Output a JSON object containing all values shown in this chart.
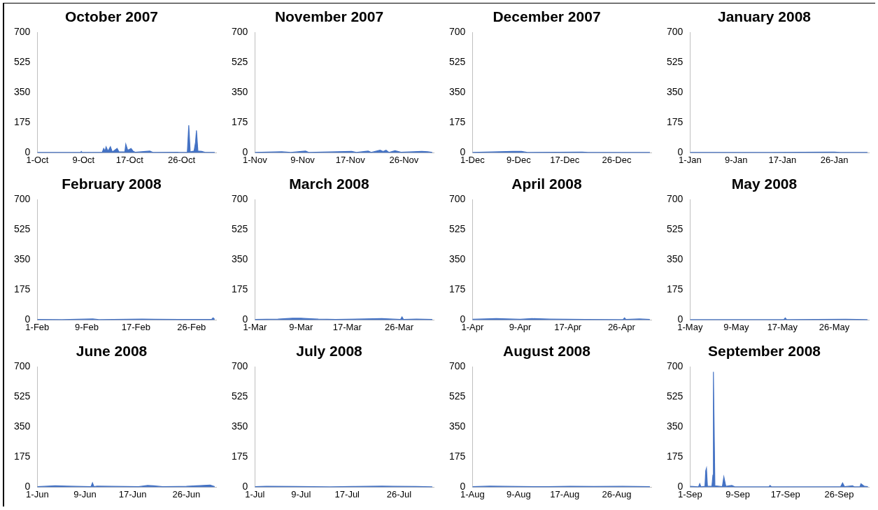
{
  "chart_data": [
    {
      "type": "area",
      "title": "October 2007",
      "color": "#4472c4",
      "xlim": [
        "2007-10-01",
        "2007-11-01"
      ],
      "xticks": [
        {
          "value": "2007-10-01",
          "label": "1-Oct"
        },
        {
          "value": "2007-10-09",
          "label": "9-Oct"
        },
        {
          "value": "2007-10-17",
          "label": "17-Oct"
        },
        {
          "value": "2007-10-26",
          "label": "26-Oct"
        }
      ],
      "ylim": [
        0,
        700
      ],
      "yticks": [
        0,
        175,
        350,
        525,
        700
      ],
      "x": [
        "2007-10-01",
        "2007-10-08T12:00",
        "2007-10-08T15:00",
        "2007-10-08T18:00",
        "2007-10-12T06:00",
        "2007-10-12T12:00",
        "2007-10-12T18:00",
        "2007-10-12T22:00",
        "2007-10-13T06:00",
        "2007-10-13T16:00",
        "2007-10-14T00:00",
        "2007-10-14T20:00",
        "2007-10-15T04:00",
        "2007-10-16T04:00",
        "2007-10-16T08:00",
        "2007-10-16T16:00",
        "2007-10-17T06:00",
        "2007-10-17T14:00",
        "2007-10-18T00:00",
        "2007-10-20T12:00",
        "2007-10-21T00:00",
        "2007-10-27T00:00",
        "2007-10-27T06:00",
        "2007-10-27T12:00",
        "2007-10-28T04:00",
        "2007-10-28T10:00",
        "2007-10-28T14:00",
        "2007-10-28T20:00",
        "2007-10-29T12:00",
        "2007-10-30T00:00",
        "2007-10-31T18:00"
      ],
      "values": [
        2,
        2,
        8,
        2,
        3,
        25,
        10,
        35,
        10,
        35,
        5,
        25,
        5,
        5,
        50,
        15,
        25,
        10,
        3,
        10,
        2,
        3,
        160,
        5,
        10,
        60,
        130,
        10,
        8,
        3,
        2
      ]
    },
    {
      "type": "area",
      "title": "November 2007",
      "color": "#4472c4",
      "xlim": [
        "2007-11-01",
        "2007-12-01"
      ],
      "xticks": [
        {
          "value": "2007-11-01",
          "label": "1-Nov"
        },
        {
          "value": "2007-11-09",
          "label": "9-Nov"
        },
        {
          "value": "2007-11-17",
          "label": "17-Nov"
        },
        {
          "value": "2007-11-26",
          "label": "26-Nov"
        }
      ],
      "ylim": [
        0,
        700
      ],
      "yticks": [
        0,
        175,
        350,
        525,
        700
      ],
      "x": [
        "2007-11-01",
        "2007-11-05T12:00",
        "2007-11-07",
        "2007-11-09T12:00",
        "2007-11-10",
        "2007-11-17T06:00",
        "2007-11-18",
        "2007-11-20",
        "2007-11-20T12:00",
        "2007-11-22",
        "2007-11-22T12:00",
        "2007-11-23",
        "2007-11-23T12:00",
        "2007-11-24T12:00",
        "2007-11-25T12:00",
        "2007-11-29",
        "2007-11-30",
        "2007-11-30T18:00"
      ],
      "values": [
        2,
        6,
        2,
        10,
        2,
        8,
        2,
        10,
        2,
        15,
        8,
        15,
        2,
        12,
        3,
        8,
        6,
        2
      ]
    },
    {
      "type": "area",
      "title": "December 2007",
      "color": "#4472c4",
      "xlim": [
        "2007-12-01",
        "2008-01-01"
      ],
      "xticks": [
        {
          "value": "2007-12-01",
          "label": "1-Dec"
        },
        {
          "value": "2007-12-09",
          "label": "9-Dec"
        },
        {
          "value": "2007-12-17",
          "label": "17-Dec"
        },
        {
          "value": "2007-12-26",
          "label": "26-Dec"
        }
      ],
      "ylim": [
        0,
        700
      ],
      "yticks": [
        0,
        175,
        350,
        525,
        700
      ],
      "x": [
        "2007-12-01",
        "2007-12-08",
        "2007-12-09T12:00",
        "2007-12-10T12:00",
        "2007-12-20",
        "2007-12-21",
        "2007-12-31T18:00"
      ],
      "values": [
        2,
        8,
        8,
        2,
        4,
        2,
        2
      ]
    },
    {
      "type": "area",
      "title": "January 2008",
      "color": "#4472c4",
      "xlim": [
        "2008-01-01",
        "2008-02-01"
      ],
      "xticks": [
        {
          "value": "2008-01-01",
          "label": "1-Jan"
        },
        {
          "value": "2008-01-09",
          "label": "9-Jan"
        },
        {
          "value": "2008-01-17",
          "label": "17-Jan"
        },
        {
          "value": "2008-01-26",
          "label": "26-Jan"
        }
      ],
      "ylim": [
        0,
        700
      ],
      "yticks": [
        0,
        175,
        350,
        525,
        700
      ],
      "x": [
        "2008-01-01",
        "2008-01-15",
        "2008-01-26",
        "2008-01-27",
        "2008-01-31T18:00"
      ],
      "values": [
        2,
        2,
        4,
        2,
        2
      ]
    },
    {
      "type": "area",
      "title": "February 2008",
      "color": "#4472c4",
      "xlim": [
        "2008-02-01",
        "2008-03-01"
      ],
      "xticks": [
        {
          "value": "2008-02-01",
          "label": "1-Feb"
        },
        {
          "value": "2008-02-09",
          "label": "9-Feb"
        },
        {
          "value": "2008-02-17",
          "label": "17-Feb"
        },
        {
          "value": "2008-02-26",
          "label": "26-Feb"
        }
      ],
      "ylim": [
        0,
        700
      ],
      "yticks": [
        0,
        175,
        350,
        525,
        700
      ],
      "x": [
        "2008-02-01",
        "2008-02-05",
        "2008-02-10",
        "2008-02-11",
        "2008-02-18",
        "2008-02-20",
        "2008-02-24",
        "2008-02-29T06:00",
        "2008-02-29T12:00",
        "2008-02-29T18:00"
      ],
      "values": [
        3,
        2,
        6,
        2,
        5,
        4,
        3,
        3,
        12,
        4
      ]
    },
    {
      "type": "area",
      "title": "March 2008",
      "color": "#4472c4",
      "xlim": [
        "2008-03-01",
        "2008-04-01"
      ],
      "xticks": [
        {
          "value": "2008-03-01",
          "label": "1-Mar"
        },
        {
          "value": "2008-03-09",
          "label": "9-Mar"
        },
        {
          "value": "2008-03-17",
          "label": "17-Mar"
        },
        {
          "value": "2008-03-26",
          "label": "26-Mar"
        }
      ],
      "ylim": [
        0,
        700
      ],
      "yticks": [
        0,
        175,
        350,
        525,
        700
      ],
      "x": [
        "2008-03-01",
        "2008-03-05",
        "2008-03-07T12:00",
        "2008-03-09",
        "2008-03-10",
        "2008-03-12",
        "2008-03-15",
        "2008-03-20",
        "2008-03-23",
        "2008-03-26T06:00",
        "2008-03-26T12:00",
        "2008-03-26T18:00",
        "2008-03-29",
        "2008-03-31T18:00"
      ],
      "values": [
        3,
        5,
        10,
        10,
        8,
        5,
        3,
        6,
        8,
        3,
        18,
        3,
        5,
        3
      ]
    },
    {
      "type": "area",
      "title": "April 2008",
      "color": "#4472c4",
      "xlim": [
        "2008-04-01",
        "2008-05-01"
      ],
      "xticks": [
        {
          "value": "2008-04-01",
          "label": "1-Apr"
        },
        {
          "value": "2008-04-09",
          "label": "9-Apr"
        },
        {
          "value": "2008-04-17",
          "label": "17-Apr"
        },
        {
          "value": "2008-04-26",
          "label": "26-Apr"
        }
      ],
      "ylim": [
        0,
        700
      ],
      "yticks": [
        0,
        175,
        350,
        525,
        700
      ],
      "x": [
        "2008-04-01",
        "2008-04-05",
        "2008-04-09",
        "2008-04-11",
        "2008-04-14",
        "2008-04-20",
        "2008-04-26T06:00",
        "2008-04-26T12:00",
        "2008-04-26T18:00",
        "2008-04-29",
        "2008-04-30T18:00"
      ],
      "values": [
        4,
        8,
        4,
        8,
        5,
        3,
        2,
        12,
        3,
        6,
        3
      ]
    },
    {
      "type": "area",
      "title": "May 2008",
      "color": "#4472c4",
      "xlim": [
        "2008-05-01",
        "2008-06-01"
      ],
      "xticks": [
        {
          "value": "2008-05-01",
          "label": "1-May"
        },
        {
          "value": "2008-05-09",
          "label": "9-May"
        },
        {
          "value": "2008-05-17",
          "label": "17-May"
        },
        {
          "value": "2008-05-26",
          "label": "26-May"
        }
      ],
      "ylim": [
        0,
        700
      ],
      "yticks": [
        0,
        175,
        350,
        525,
        700
      ],
      "x": [
        "2008-05-01",
        "2008-05-10",
        "2008-05-17T06:00",
        "2008-05-17T12:00",
        "2008-05-17T18:00",
        "2008-05-28",
        "2008-05-31T18:00"
      ],
      "values": [
        2,
        2,
        2,
        12,
        2,
        4,
        2
      ]
    },
    {
      "type": "area",
      "title": "June 2008",
      "color": "#4472c4",
      "xlim": [
        "2008-06-01",
        "2008-07-01"
      ],
      "xticks": [
        {
          "value": "2008-06-01",
          "label": "1-Jun"
        },
        {
          "value": "2008-06-09",
          "label": "9-Jun"
        },
        {
          "value": "2008-06-17",
          "label": "17-Jun"
        },
        {
          "value": "2008-06-26",
          "label": "26-Jun"
        }
      ],
      "ylim": [
        0,
        700
      ],
      "yticks": [
        0,
        175,
        350,
        525,
        700
      ],
      "x": [
        "2008-06-01",
        "2008-06-04",
        "2008-06-06",
        "2008-06-10",
        "2008-06-10T06:00",
        "2008-06-10T12:00",
        "2008-06-11",
        "2008-06-18",
        "2008-06-19T12:00",
        "2008-06-20T12:00",
        "2008-06-22",
        "2008-06-26",
        "2008-06-30",
        "2008-06-30T18:00"
      ],
      "values": [
        3,
        8,
        6,
        3,
        25,
        3,
        6,
        3,
        10,
        8,
        3,
        5,
        12,
        3
      ]
    },
    {
      "type": "area",
      "title": "July 2008",
      "color": "#4472c4",
      "xlim": [
        "2008-07-01",
        "2008-08-01"
      ],
      "xticks": [
        {
          "value": "2008-07-01",
          "label": "1-Jul"
        },
        {
          "value": "2008-07-09",
          "label": "9-Jul"
        },
        {
          "value": "2008-07-17",
          "label": "17-Jul"
        },
        {
          "value": "2008-07-26",
          "label": "26-Jul"
        }
      ],
      "ylim": [
        0,
        700
      ],
      "yticks": [
        0,
        175,
        350,
        525,
        700
      ],
      "x": [
        "2008-07-01",
        "2008-07-03",
        "2008-07-08",
        "2008-07-14",
        "2008-07-18",
        "2008-07-23",
        "2008-07-25",
        "2008-07-29",
        "2008-07-31T18:00"
      ],
      "values": [
        3,
        5,
        4,
        2,
        4,
        6,
        5,
        4,
        2
      ]
    },
    {
      "type": "area",
      "title": "August 2008",
      "color": "#4472c4",
      "xlim": [
        "2008-08-01",
        "2008-09-01"
      ],
      "xticks": [
        {
          "value": "2008-08-01",
          "label": "1-Aug"
        },
        {
          "value": "2008-08-09",
          "label": "9-Aug"
        },
        {
          "value": "2008-08-17",
          "label": "17-Aug"
        },
        {
          "value": "2008-08-26",
          "label": "26-Aug"
        }
      ],
      "ylim": [
        0,
        700
      ],
      "yticks": [
        0,
        175,
        350,
        525,
        700
      ],
      "x": [
        "2008-08-01",
        "2008-08-04",
        "2008-08-09",
        "2008-08-14",
        "2008-08-18",
        "2008-08-22",
        "2008-08-27",
        "2008-08-31T18:00"
      ],
      "values": [
        3,
        6,
        4,
        3,
        5,
        4,
        5,
        3
      ]
    },
    {
      "type": "area",
      "title": "September 2008",
      "color": "#4472c4",
      "xlim": [
        "2008-09-01",
        "2008-10-01"
      ],
      "xticks": [
        {
          "value": "2008-09-01",
          "label": "1-Sep"
        },
        {
          "value": "2008-09-09",
          "label": "9-Sep"
        },
        {
          "value": "2008-09-17",
          "label": "17-Sep"
        },
        {
          "value": "2008-09-26",
          "label": "26-Sep"
        }
      ],
      "ylim": [
        0,
        700
      ],
      "yticks": [
        0,
        175,
        350,
        525,
        700
      ],
      "x": [
        "2008-09-01",
        "2008-09-02T10:00",
        "2008-09-02T15:00",
        "2008-09-02T20:00",
        "2008-09-03T12:00",
        "2008-09-03T15:00",
        "2008-09-03T18:00",
        "2008-09-03T22:00",
        "2008-09-04T16:00",
        "2008-09-04T20:00",
        "2008-09-04T22:00",
        "2008-09-05T04:00",
        "2008-09-06T10:00",
        "2008-09-06T16:00",
        "2008-09-07",
        "2008-09-08",
        "2008-09-08T12:00",
        "2008-09-14T06:00",
        "2008-09-14T10:00",
        "2008-09-14T16:00",
        "2008-09-26T06:00",
        "2008-09-26T14:00",
        "2008-09-26T22:00",
        "2008-09-28T06:00",
        "2008-09-28T14:00",
        "2008-09-29T12:00",
        "2008-09-29T16:00",
        "2008-09-30T06:00",
        "2008-09-30T20:00"
      ],
      "values": [
        5,
        2,
        20,
        2,
        5,
        95,
        110,
        5,
        5,
        70,
        670,
        8,
        3,
        60,
        5,
        10,
        2,
        2,
        10,
        2,
        3,
        25,
        3,
        8,
        2,
        3,
        20,
        5,
        3
      ]
    }
  ]
}
